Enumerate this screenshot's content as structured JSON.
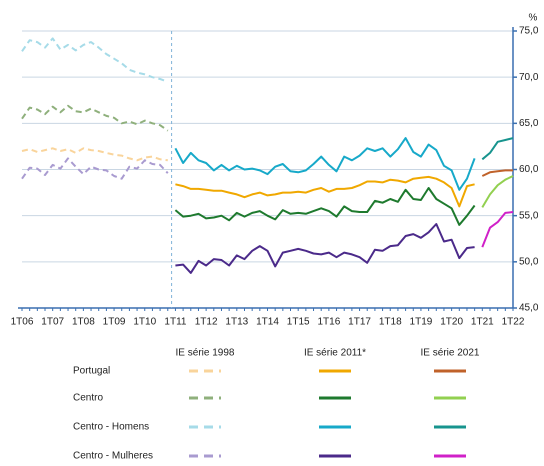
{
  "chart_data": {
    "type": "line",
    "y_unit": "%",
    "categories": [
      "1T06",
      null,
      null,
      null,
      "1T07",
      null,
      null,
      null,
      "1T08",
      null,
      null,
      null,
      "1T09",
      null,
      null,
      null,
      "1T10",
      null,
      null,
      null,
      "1T11",
      null,
      null,
      null,
      "1T12",
      null,
      null,
      null,
      "1T13",
      null,
      null,
      null,
      "1T14",
      null,
      null,
      null,
      "1T15",
      null,
      null,
      null,
      "1T16",
      null,
      null,
      null,
      "1T17",
      null,
      null,
      null,
      "1T18",
      null,
      null,
      null,
      "1T19",
      null,
      null,
      null,
      "1T20",
      null,
      null,
      null,
      "1T21",
      null,
      null,
      null,
      "1T22"
    ],
    "ylim": [
      45,
      75
    ],
    "yticks": [
      {
        "value": 45,
        "label": "45,0"
      },
      {
        "value": 50,
        "label": "50,0"
      },
      {
        "value": 55,
        "label": "55,0"
      },
      {
        "value": 60,
        "label": "60,0"
      },
      {
        "value": 65,
        "label": "65,0"
      },
      {
        "value": 70,
        "label": "70,0"
      },
      {
        "value": 75,
        "label": "75,0"
      }
    ],
    "grid": true,
    "series": [
      {
        "name": "Portugal",
        "edition": "IE série 1998",
        "color": "#f9d49b",
        "dashed": true,
        "values": [
          62.0,
          62.2,
          61.9,
          62.1,
          62.3,
          62.0,
          62.2,
          61.8,
          62.3,
          62.1,
          62.0,
          61.8,
          61.6,
          61.5,
          61.2,
          61.0,
          61.3,
          61.4,
          61.1,
          61.0,
          null,
          null,
          null,
          null,
          null,
          null,
          null,
          null,
          null,
          null,
          null,
          null,
          null,
          null,
          null,
          null,
          null,
          null,
          null,
          null,
          null,
          null,
          null,
          null,
          null,
          null,
          null,
          null,
          null,
          null,
          null,
          null,
          null,
          null,
          null,
          null,
          null,
          null,
          null,
          null,
          null,
          null,
          null,
          null,
          null
        ]
      },
      {
        "name": "Portugal",
        "edition": "IE série 2011*",
        "color": "#f0a800",
        "dashed": false,
        "values": [
          null,
          null,
          null,
          null,
          null,
          null,
          null,
          null,
          null,
          null,
          null,
          null,
          null,
          null,
          null,
          null,
          null,
          null,
          null,
          null,
          58.4,
          58.2,
          57.9,
          57.9,
          57.8,
          57.7,
          57.7,
          57.5,
          57.3,
          57.0,
          57.3,
          57.5,
          57.2,
          57.3,
          57.5,
          57.5,
          57.6,
          57.5,
          57.8,
          58.0,
          57.6,
          57.9,
          57.9,
          58.0,
          58.3,
          58.7,
          58.7,
          58.6,
          58.9,
          58.8,
          58.6,
          59.0,
          59.1,
          59.2,
          59.0,
          58.6,
          58.0,
          56.0,
          58.2,
          58.4,
          null,
          null,
          null,
          null,
          null
        ]
      },
      {
        "name": "Portugal",
        "edition": "IE série 2021",
        "color": "#c0622a",
        "dashed": false,
        "values": [
          null,
          null,
          null,
          null,
          null,
          null,
          null,
          null,
          null,
          null,
          null,
          null,
          null,
          null,
          null,
          null,
          null,
          null,
          null,
          null,
          null,
          null,
          null,
          null,
          null,
          null,
          null,
          null,
          null,
          null,
          null,
          null,
          null,
          null,
          null,
          null,
          null,
          null,
          null,
          null,
          null,
          null,
          null,
          null,
          null,
          null,
          null,
          null,
          null,
          null,
          null,
          null,
          null,
          null,
          null,
          null,
          null,
          null,
          null,
          null,
          59.3,
          59.7,
          59.8,
          59.9,
          59.9
        ]
      },
      {
        "name": "Centro",
        "edition": "IE série 1998",
        "color": "#8fb07c",
        "dashed": true,
        "values": [
          65.5,
          66.7,
          66.5,
          66.0,
          66.8,
          66.2,
          66.9,
          66.3,
          66.2,
          66.6,
          66.2,
          65.8,
          65.6,
          65.0,
          65.2,
          64.9,
          65.3,
          65.0,
          64.8,
          64.2,
          null,
          null,
          null,
          null,
          null,
          null,
          null,
          null,
          null,
          null,
          null,
          null,
          null,
          null,
          null,
          null,
          null,
          null,
          null,
          null,
          null,
          null,
          null,
          null,
          null,
          null,
          null,
          null,
          null,
          null,
          null,
          null,
          null,
          null,
          null,
          null,
          null,
          null,
          null,
          null,
          null,
          null,
          null,
          null,
          null
        ]
      },
      {
        "name": "Centro",
        "edition": "IE série 2011*",
        "color": "#1e7a2e",
        "dashed": false,
        "values": [
          null,
          null,
          null,
          null,
          null,
          null,
          null,
          null,
          null,
          null,
          null,
          null,
          null,
          null,
          null,
          null,
          null,
          null,
          null,
          null,
          55.6,
          54.9,
          55.0,
          55.2,
          54.7,
          54.8,
          55.0,
          54.5,
          55.3,
          54.9,
          55.3,
          55.5,
          55.0,
          54.6,
          55.6,
          55.2,
          55.3,
          55.2,
          55.5,
          55.8,
          55.5,
          54.9,
          56.0,
          55.5,
          55.4,
          55.4,
          56.6,
          56.4,
          56.8,
          56.5,
          57.8,
          56.8,
          56.7,
          58.0,
          56.8,
          56.3,
          55.8,
          54.0,
          55.0,
          56.1,
          null,
          null,
          null,
          null,
          null
        ]
      },
      {
        "name": "Centro",
        "edition": "IE série 2021",
        "color": "#92d050",
        "dashed": false,
        "values": [
          null,
          null,
          null,
          null,
          null,
          null,
          null,
          null,
          null,
          null,
          null,
          null,
          null,
          null,
          null,
          null,
          null,
          null,
          null,
          null,
          null,
          null,
          null,
          null,
          null,
          null,
          null,
          null,
          null,
          null,
          null,
          null,
          null,
          null,
          null,
          null,
          null,
          null,
          null,
          null,
          null,
          null,
          null,
          null,
          null,
          null,
          null,
          null,
          null,
          null,
          null,
          null,
          null,
          null,
          null,
          null,
          null,
          null,
          null,
          null,
          55.9,
          57.3,
          58.3,
          58.9,
          59.3
        ]
      },
      {
        "name": "Centro - Homens",
        "edition": "IE série 1998",
        "color": "#a6dbe8",
        "dashed": true,
        "values": [
          72.8,
          74.0,
          73.8,
          73.2,
          74.2,
          73.0,
          73.5,
          72.9,
          73.5,
          73.8,
          73.2,
          72.5,
          72.0,
          71.5,
          70.8,
          70.5,
          70.3,
          70.0,
          69.8,
          69.5,
          null,
          null,
          null,
          null,
          null,
          null,
          null,
          null,
          null,
          null,
          null,
          null,
          null,
          null,
          null,
          null,
          null,
          null,
          null,
          null,
          null,
          null,
          null,
          null,
          null,
          null,
          null,
          null,
          null,
          null,
          null,
          null,
          null,
          null,
          null,
          null,
          null,
          null,
          null,
          null,
          null,
          null,
          null,
          null,
          null
        ]
      },
      {
        "name": "Centro - Homens",
        "edition": "IE série 2011*",
        "color": "#17a9c9",
        "dashed": false,
        "values": [
          null,
          null,
          null,
          null,
          null,
          null,
          null,
          null,
          null,
          null,
          null,
          null,
          null,
          null,
          null,
          null,
          null,
          null,
          null,
          null,
          62.3,
          60.7,
          61.8,
          61.0,
          60.7,
          59.9,
          60.5,
          59.9,
          60.4,
          60.0,
          60.1,
          59.9,
          59.5,
          60.3,
          60.6,
          59.8,
          59.7,
          59.9,
          60.6,
          61.4,
          60.5,
          59.8,
          61.4,
          61.0,
          61.5,
          62.3,
          62.0,
          62.3,
          61.4,
          62.2,
          63.4,
          61.9,
          61.4,
          62.7,
          62.1,
          60.4,
          59.9,
          57.8,
          59.0,
          61.2,
          null,
          null,
          null,
          null,
          null
        ]
      },
      {
        "name": "Centro - Homens",
        "edition": "IE série 2021",
        "color": "#17948e",
        "dashed": false,
        "values": [
          null,
          null,
          null,
          null,
          null,
          null,
          null,
          null,
          null,
          null,
          null,
          null,
          null,
          null,
          null,
          null,
          null,
          null,
          null,
          null,
          null,
          null,
          null,
          null,
          null,
          null,
          null,
          null,
          null,
          null,
          null,
          null,
          null,
          null,
          null,
          null,
          null,
          null,
          null,
          null,
          null,
          null,
          null,
          null,
          null,
          null,
          null,
          null,
          null,
          null,
          null,
          null,
          null,
          null,
          null,
          null,
          null,
          null,
          null,
          null,
          61.1,
          61.8,
          63.0,
          63.2,
          63.4
        ]
      },
      {
        "name": "Centro - Mulheres",
        "edition": "IE série 1998",
        "color": "#a99bd0",
        "dashed": true,
        "values": [
          59.0,
          60.2,
          60.1,
          59.4,
          60.5,
          60.1,
          61.2,
          60.3,
          59.5,
          60.3,
          60.0,
          59.9,
          59.3,
          59.0,
          60.3,
          60.1,
          61.0,
          60.6,
          60.5,
          59.6,
          null,
          null,
          null,
          null,
          null,
          null,
          null,
          null,
          null,
          null,
          null,
          null,
          null,
          null,
          null,
          null,
          null,
          null,
          null,
          null,
          null,
          null,
          null,
          null,
          null,
          null,
          null,
          null,
          null,
          null,
          null,
          null,
          null,
          null,
          null,
          null,
          null,
          null,
          null,
          null,
          null,
          null,
          null,
          null,
          null
        ]
      },
      {
        "name": "Centro - Mulheres",
        "edition": "IE série 2011*",
        "color": "#4b2a8a",
        "dashed": false,
        "values": [
          null,
          null,
          null,
          null,
          null,
          null,
          null,
          null,
          null,
          null,
          null,
          null,
          null,
          null,
          null,
          null,
          null,
          null,
          null,
          null,
          49.6,
          49.7,
          48.8,
          50.1,
          49.6,
          50.3,
          50.2,
          49.6,
          50.7,
          50.3,
          51.2,
          51.7,
          51.2,
          49.5,
          51.0,
          51.2,
          51.4,
          51.2,
          50.9,
          50.8,
          51.0,
          50.5,
          51.0,
          50.8,
          50.5,
          49.9,
          51.3,
          51.2,
          51.7,
          51.8,
          52.8,
          53.0,
          52.6,
          53.2,
          54.1,
          52.2,
          52.4,
          50.4,
          51.5,
          51.6,
          null,
          null,
          null,
          null,
          null
        ]
      },
      {
        "name": "Centro - Mulheres",
        "edition": "IE série 2021",
        "color": "#d020c8",
        "dashed": false,
        "values": [
          null,
          null,
          null,
          null,
          null,
          null,
          null,
          null,
          null,
          null,
          null,
          null,
          null,
          null,
          null,
          null,
          null,
          null,
          null,
          null,
          null,
          null,
          null,
          null,
          null,
          null,
          null,
          null,
          null,
          null,
          null,
          null,
          null,
          null,
          null,
          null,
          null,
          null,
          null,
          null,
          null,
          null,
          null,
          null,
          null,
          null,
          null,
          null,
          null,
          null,
          null,
          null,
          null,
          null,
          null,
          null,
          null,
          null,
          null,
          null,
          51.6,
          53.7,
          54.3,
          55.3,
          55.4
        ]
      }
    ]
  }
}
